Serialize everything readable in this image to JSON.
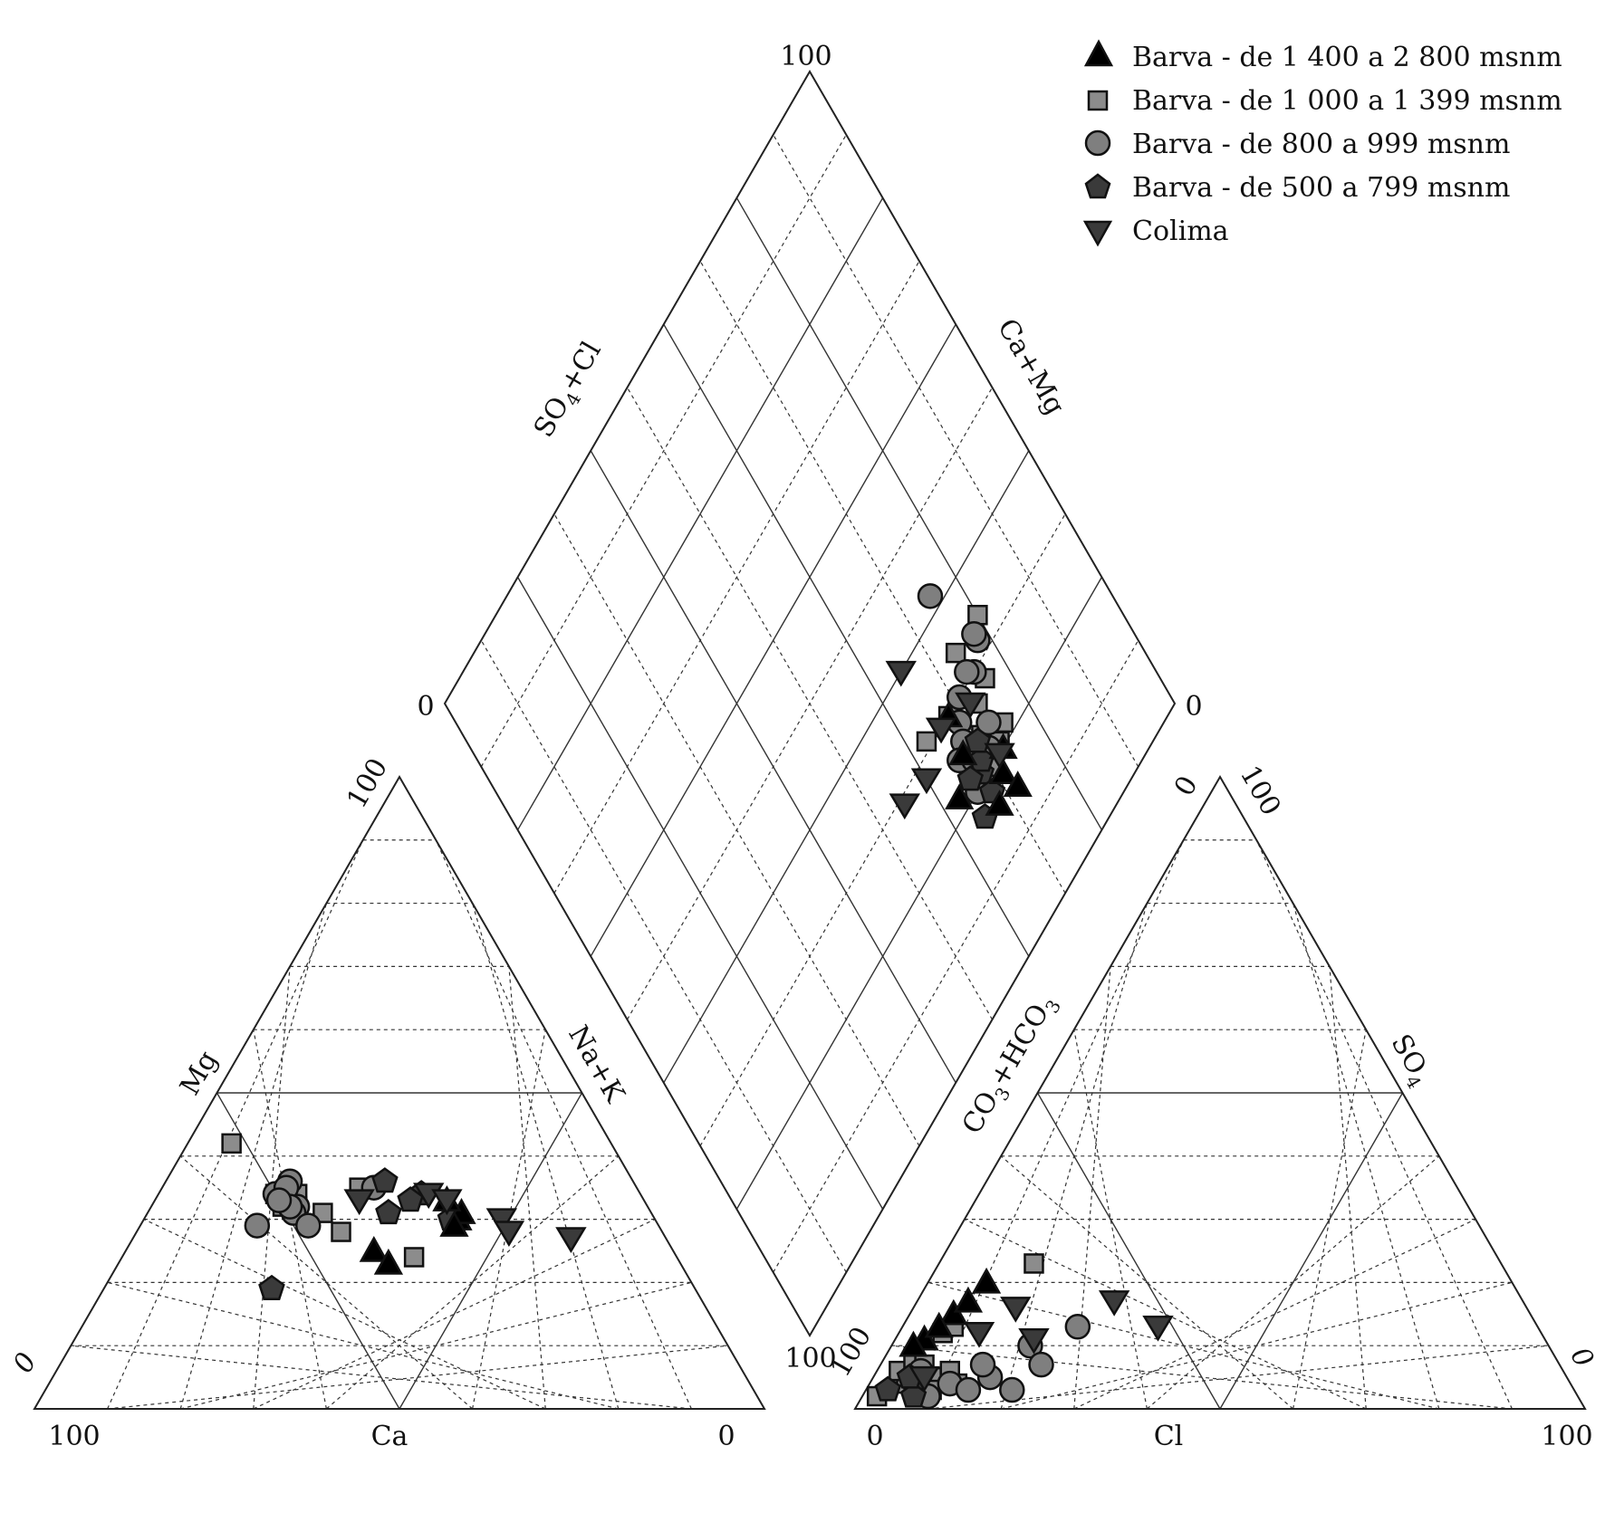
{
  "chart_data": {
    "type": "scatter",
    "subtype": "piper-diagram",
    "title": "",
    "colors": {
      "triangle_up": "#000000",
      "square": "#8c8c8c",
      "circle": "#7f7f7f",
      "pentagon": "#3a3a3a",
      "triangle_down": "#3a3a3a"
    },
    "legend": {
      "placement": "top-right",
      "entries": [
        {
          "label": "Barva - de 1 400 a 2 800 msnm",
          "marker": "triangle_up"
        },
        {
          "label": "Barva - de 1 000 a 1 399 msnm",
          "marker": "square"
        },
        {
          "label": "Barva - de 800 a 999 msnm",
          "marker": "circle"
        },
        {
          "label": "Barva - de 500 a 799 msnm",
          "marker": "pentagon"
        },
        {
          "label": "Colima",
          "marker": "triangle_down"
        }
      ]
    },
    "grid": true,
    "tick_labels": {
      "cation_left_100": "100",
      "cation_right_0": "0",
      "cation_top_100": "100",
      "cation_leftside_0": "0",
      "anion_left_0": "0",
      "anion_right_100": "100",
      "anion_top_0": "0",
      "anion_top_100": "100",
      "anion_leftside_100": "100",
      "anion_rightside_0": "0",
      "diamond_top_100": "100",
      "diamond_left_0": "0",
      "diamond_right_0": "0",
      "diamond_bottom_100": "100"
    },
    "axis_labels": {
      "cation_bottom": "Ca",
      "cation_left": "Mg",
      "cation_right": "Na+K",
      "anion_bottom": "Cl",
      "anion_right": "SO4",
      "anion_left": "CO3+HCO3",
      "diamond_left": "SO4+Cl",
      "diamond_right": "Ca+Mg"
    },
    "cations_ca_mg_percent": {
      "triangle_up": [
        [
          41,
          25
        ],
        [
          40,
          23
        ],
        [
          27,
          30
        ],
        [
          26,
          31
        ],
        [
          27,
          33
        ],
        [
          28,
          29
        ]
      ],
      "square": [
        [
          52,
          42
        ],
        [
          45,
          31
        ],
        [
          48,
          32
        ],
        [
          50,
          32
        ],
        [
          49,
          33
        ],
        [
          47,
          34
        ],
        [
          50,
          34
        ],
        [
          38,
          35
        ],
        [
          36,
          24
        ],
        [
          44,
          28
        ]
      ],
      "circle": [
        [
          48,
          32
        ],
        [
          50,
          34
        ],
        [
          47,
          36
        ],
        [
          48,
          35
        ],
        [
          49,
          31
        ],
        [
          36,
          35
        ],
        [
          55,
          29
        ],
        [
          48,
          29
        ],
        [
          49,
          32
        ],
        [
          50,
          33
        ]
      ],
      "pentagon": [
        [
          34,
          36
        ],
        [
          30,
          34
        ],
        [
          36,
          31
        ],
        [
          32,
          33
        ],
        [
          28,
          30
        ],
        [
          58,
          19
        ]
      ],
      "triangle_down": [
        [
          39,
          33
        ],
        [
          29,
          34
        ],
        [
          27,
          33
        ],
        [
          21,
          30
        ],
        [
          21,
          28
        ],
        [
          13,
          27
        ]
      ]
    },
    "anions_cl_so4_percent": {
      "triangle_up": [
        [
          4,
          11
        ],
        [
          8,
          20
        ],
        [
          6,
          15
        ],
        [
          5,
          13
        ],
        [
          3,
          10
        ],
        [
          7,
          17
        ]
      ],
      "square": [
        [
          5,
          4
        ],
        [
          6,
          12
        ],
        [
          10,
          6
        ],
        [
          12,
          4
        ],
        [
          8,
          5
        ],
        [
          3,
          6
        ],
        [
          9,
          3
        ],
        [
          7,
          13
        ],
        [
          4,
          8
        ],
        [
          13,
          23
        ],
        [
          6,
          7
        ],
        [
          2,
          2
        ]
      ],
      "circle": [
        [
          11,
          4
        ],
        [
          14,
          3
        ],
        [
          16,
          5
        ],
        [
          19,
          10
        ],
        [
          14,
          7
        ],
        [
          9,
          2
        ],
        [
          22,
          7
        ],
        [
          20,
          3
        ],
        [
          24,
          13
        ],
        [
          6,
          6
        ]
      ],
      "pentagon": [
        [
          3,
          3
        ],
        [
          6,
          4
        ],
        [
          7,
          2
        ],
        [
          5,
          5
        ]
      ],
      "triangle_down": [
        [
          14,
          16
        ],
        [
          19,
          11
        ],
        [
          11,
          12
        ],
        [
          27,
          17
        ],
        [
          35,
          13
        ],
        [
          7,
          5
        ]
      ]
    },
    "diamond_so4cl_camg_percent": {
      "triangle_up": [
        [
          20,
          73
        ],
        [
          18,
          71
        ],
        [
          16,
          68
        ],
        [
          15,
          72
        ],
        [
          25,
          67
        ],
        [
          30,
          68
        ],
        [
          22,
          63
        ]
      ],
      "square": [
        [
          27,
          73
        ],
        [
          24,
          71
        ],
        [
          22,
          75
        ],
        [
          28,
          76
        ],
        [
          34,
          80
        ],
        [
          34,
          74
        ],
        [
          30,
          68
        ],
        [
          31,
          63
        ],
        [
          20,
          68
        ],
        [
          20,
          70
        ],
        [
          21,
          73
        ]
      ],
      "circle": [
        [
          30,
          75
        ],
        [
          32,
          78
        ],
        [
          31,
          74
        ],
        [
          30,
          71
        ],
        [
          28,
          69
        ],
        [
          26,
          68
        ],
        [
          25,
          66
        ],
        [
          33,
          78
        ],
        [
          20,
          66
        ],
        [
          23,
          68
        ],
        [
          42,
          75
        ],
        [
          24,
          73
        ],
        [
          22,
          71
        ]
      ],
      "pentagon": [
        [
          21,
          68
        ],
        [
          22,
          69
        ],
        [
          17,
          65
        ],
        [
          18,
          68
        ],
        [
          24,
          70
        ],
        [
          22,
          66
        ]
      ],
      "triangle_down": [
        [
          40,
          65
        ],
        [
          28,
          72
        ],
        [
          30,
          66
        ],
        [
          28,
          60
        ],
        [
          29,
          55
        ],
        [
          20,
          72
        ]
      ]
    }
  }
}
